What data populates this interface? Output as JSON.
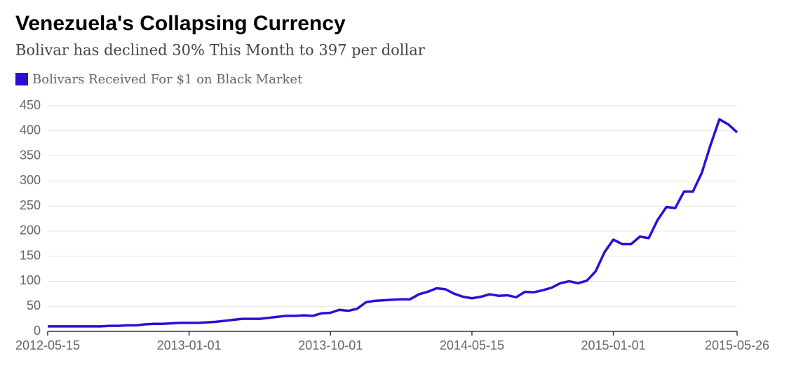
{
  "chart_data": {
    "type": "line",
    "title": "Venezuela's Collapsing Currency",
    "subtitle": "Bolivar has declined 30% This Month to 397 per dollar",
    "categories": [
      "2012-05-15",
      null,
      null,
      null,
      null,
      null,
      null,
      null,
      null,
      null,
      null,
      null,
      null,
      null,
      null,
      null,
      "2013-01-01",
      null,
      null,
      null,
      null,
      null,
      null,
      null,
      null,
      null,
      null,
      null,
      null,
      null,
      null,
      null,
      "2013-10-01",
      null,
      null,
      null,
      null,
      null,
      null,
      null,
      null,
      null,
      null,
      null,
      null,
      null,
      null,
      null,
      "2014-05-15",
      null,
      null,
      null,
      null,
      null,
      null,
      null,
      null,
      null,
      null,
      null,
      null,
      null,
      null,
      null,
      "2015-01-01",
      null,
      null,
      null,
      null,
      null,
      null,
      null,
      null,
      null,
      null,
      null,
      null,
      null,
      "2015-05-26"
    ],
    "series": [
      {
        "name": "Bolivars Received For $1 on Black Market",
        "color": "#2a10d6",
        "values": [
          10,
          10,
          10,
          10,
          10,
          10,
          10,
          11,
          11,
          12,
          12,
          14,
          15,
          15,
          16,
          17,
          17,
          17,
          18,
          19,
          21,
          23,
          25,
          25,
          25,
          27,
          29,
          31,
          31,
          32,
          31,
          36,
          37,
          43,
          41,
          45,
          58,
          61,
          62,
          63,
          64,
          64,
          74,
          79,
          86,
          84,
          75,
          69,
          66,
          69,
          74,
          71,
          72,
          68,
          79,
          78,
          82,
          87,
          96,
          100,
          96,
          101,
          120,
          158,
          183,
          174,
          174,
          189,
          186,
          222,
          248,
          246,
          279,
          279,
          316,
          372,
          423,
          413,
          397
        ]
      }
    ],
    "ylim": [
      0,
      450
    ],
    "yticks": [
      0,
      50,
      100,
      150,
      200,
      250,
      300,
      350,
      400,
      450
    ],
    "grid": true
  }
}
